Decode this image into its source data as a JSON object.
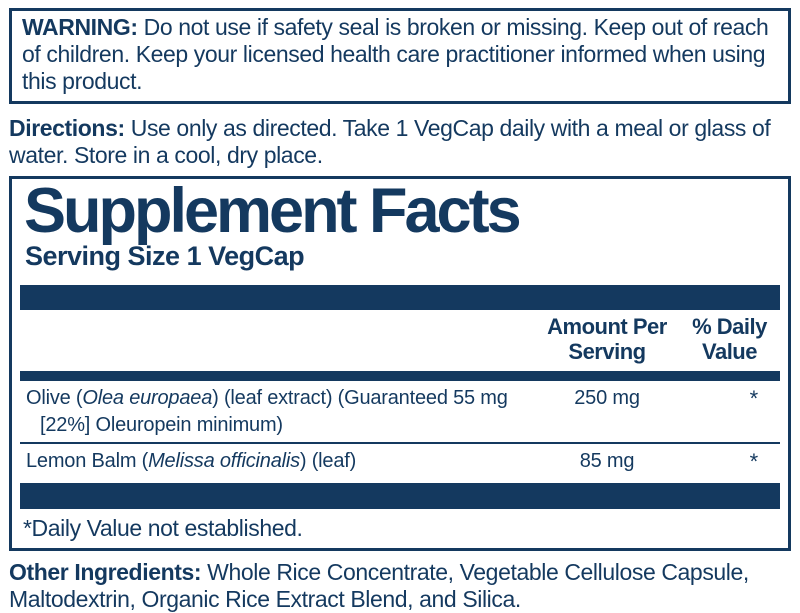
{
  "colors": {
    "navy": "#14395f",
    "background": "#ffffff"
  },
  "warning": {
    "label": "WARNING:",
    "text": "Do not use if safety seal is broken or missing. Keep out of reach of children. Keep your licensed health care practitioner informed when using this product."
  },
  "directions": {
    "label": "Directions:",
    "text": "Use only as directed. Take 1 VegCap daily with a meal or glass of water. Store in a cool, dry place."
  },
  "supplement_facts": {
    "title": "Supplement Facts",
    "serving_size": "Serving Size 1 VegCap",
    "columns": {
      "amount_per_serving": "Amount Per Serving",
      "percent_daily_value": "% Daily Value"
    },
    "rows": [
      {
        "name_prefix": "Olive (",
        "name_latin": "Olea europaea",
        "name_suffix": ") (leaf extract) (Guaranteed 55 mg [22%] Oleuropein minimum)",
        "amount": "250 mg",
        "daily_value": "*"
      },
      {
        "name_prefix": "Lemon Balm (",
        "name_latin": "Melissa officinalis",
        "name_suffix": ") (leaf)",
        "amount": "85 mg",
        "daily_value": "*"
      }
    ],
    "footnote": "*Daily Value not established."
  },
  "other_ingredients": {
    "label": "Other Ingredients:",
    "text": "Whole Rice Concentrate, Vegetable Cellulose Capsule, Maltodextrin, Organic Rice Extract Blend, and Silica."
  }
}
